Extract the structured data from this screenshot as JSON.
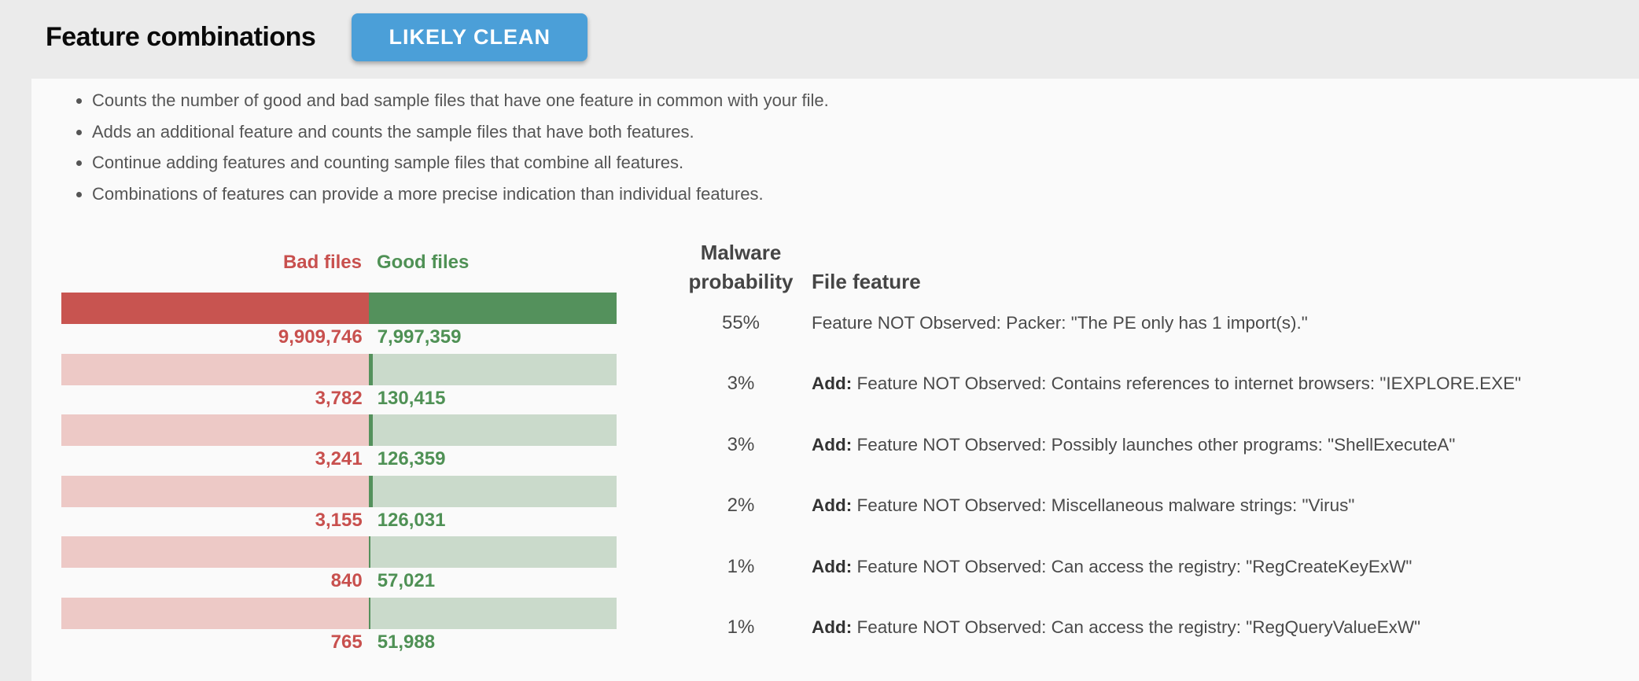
{
  "header": {
    "title": "Feature combinations",
    "verdict": "LIKELY CLEAN",
    "verdict_color": "#4b9fd8"
  },
  "description_bullets": [
    "Counts the number of good and bad sample files that have one feature in common with your file.",
    "Adds an additional feature and counts the sample files that have both features.",
    "Continue adding features and counting sample files that combine all features.",
    "Combinations of features can provide a more precise indication than individual features."
  ],
  "chart_data": {
    "type": "bar",
    "orientation": "horizontal-split",
    "legend": {
      "bad": "Bad files",
      "good": "Good files"
    },
    "colors": {
      "bad": "#c85450",
      "good": "#54915c",
      "bad_light": "#edc9c6",
      "good_light": "#cadacb"
    },
    "rows": [
      {
        "bad": 9909746,
        "good": 7997359,
        "bad_text": "9,909,746",
        "good_text": "7,997,359"
      },
      {
        "bad": 3782,
        "good": 130415,
        "bad_text": "3,782",
        "good_text": "130,415"
      },
      {
        "bad": 3241,
        "good": 126359,
        "bad_text": "3,241",
        "good_text": "126,359"
      },
      {
        "bad": 3155,
        "good": 126031,
        "bad_text": "3,155",
        "good_text": "126,031"
      },
      {
        "bad": 840,
        "good": 57021,
        "bad_text": "840",
        "good_text": "57,021"
      },
      {
        "bad": 765,
        "good": 51988,
        "bad_text": "765",
        "good_text": "51,988"
      }
    ]
  },
  "table": {
    "header_probability_line1": "Malware",
    "header_probability_line2": "probability",
    "header_feature": "File feature",
    "rows": [
      {
        "probability": "55%",
        "prefix": "",
        "feature": "Feature NOT Observed: Packer: \"The PE only has 1 import(s).\""
      },
      {
        "probability": "3%",
        "prefix": "Add:",
        "feature": "Feature NOT Observed: Contains references to internet browsers: \"IEXPLORE.EXE\""
      },
      {
        "probability": "3%",
        "prefix": "Add:",
        "feature": "Feature NOT Observed: Possibly launches other programs: \"ShellExecuteA\""
      },
      {
        "probability": "2%",
        "prefix": "Add:",
        "feature": "Feature NOT Observed: Miscellaneous malware strings: \"Virus\""
      },
      {
        "probability": "1%",
        "prefix": "Add:",
        "feature": "Feature NOT Observed: Can access the registry: \"RegCreateKeyExW\""
      },
      {
        "probability": "1%",
        "prefix": "Add:",
        "feature": "Feature NOT Observed: Can access the registry: \"RegQueryValueExW\""
      }
    ]
  }
}
